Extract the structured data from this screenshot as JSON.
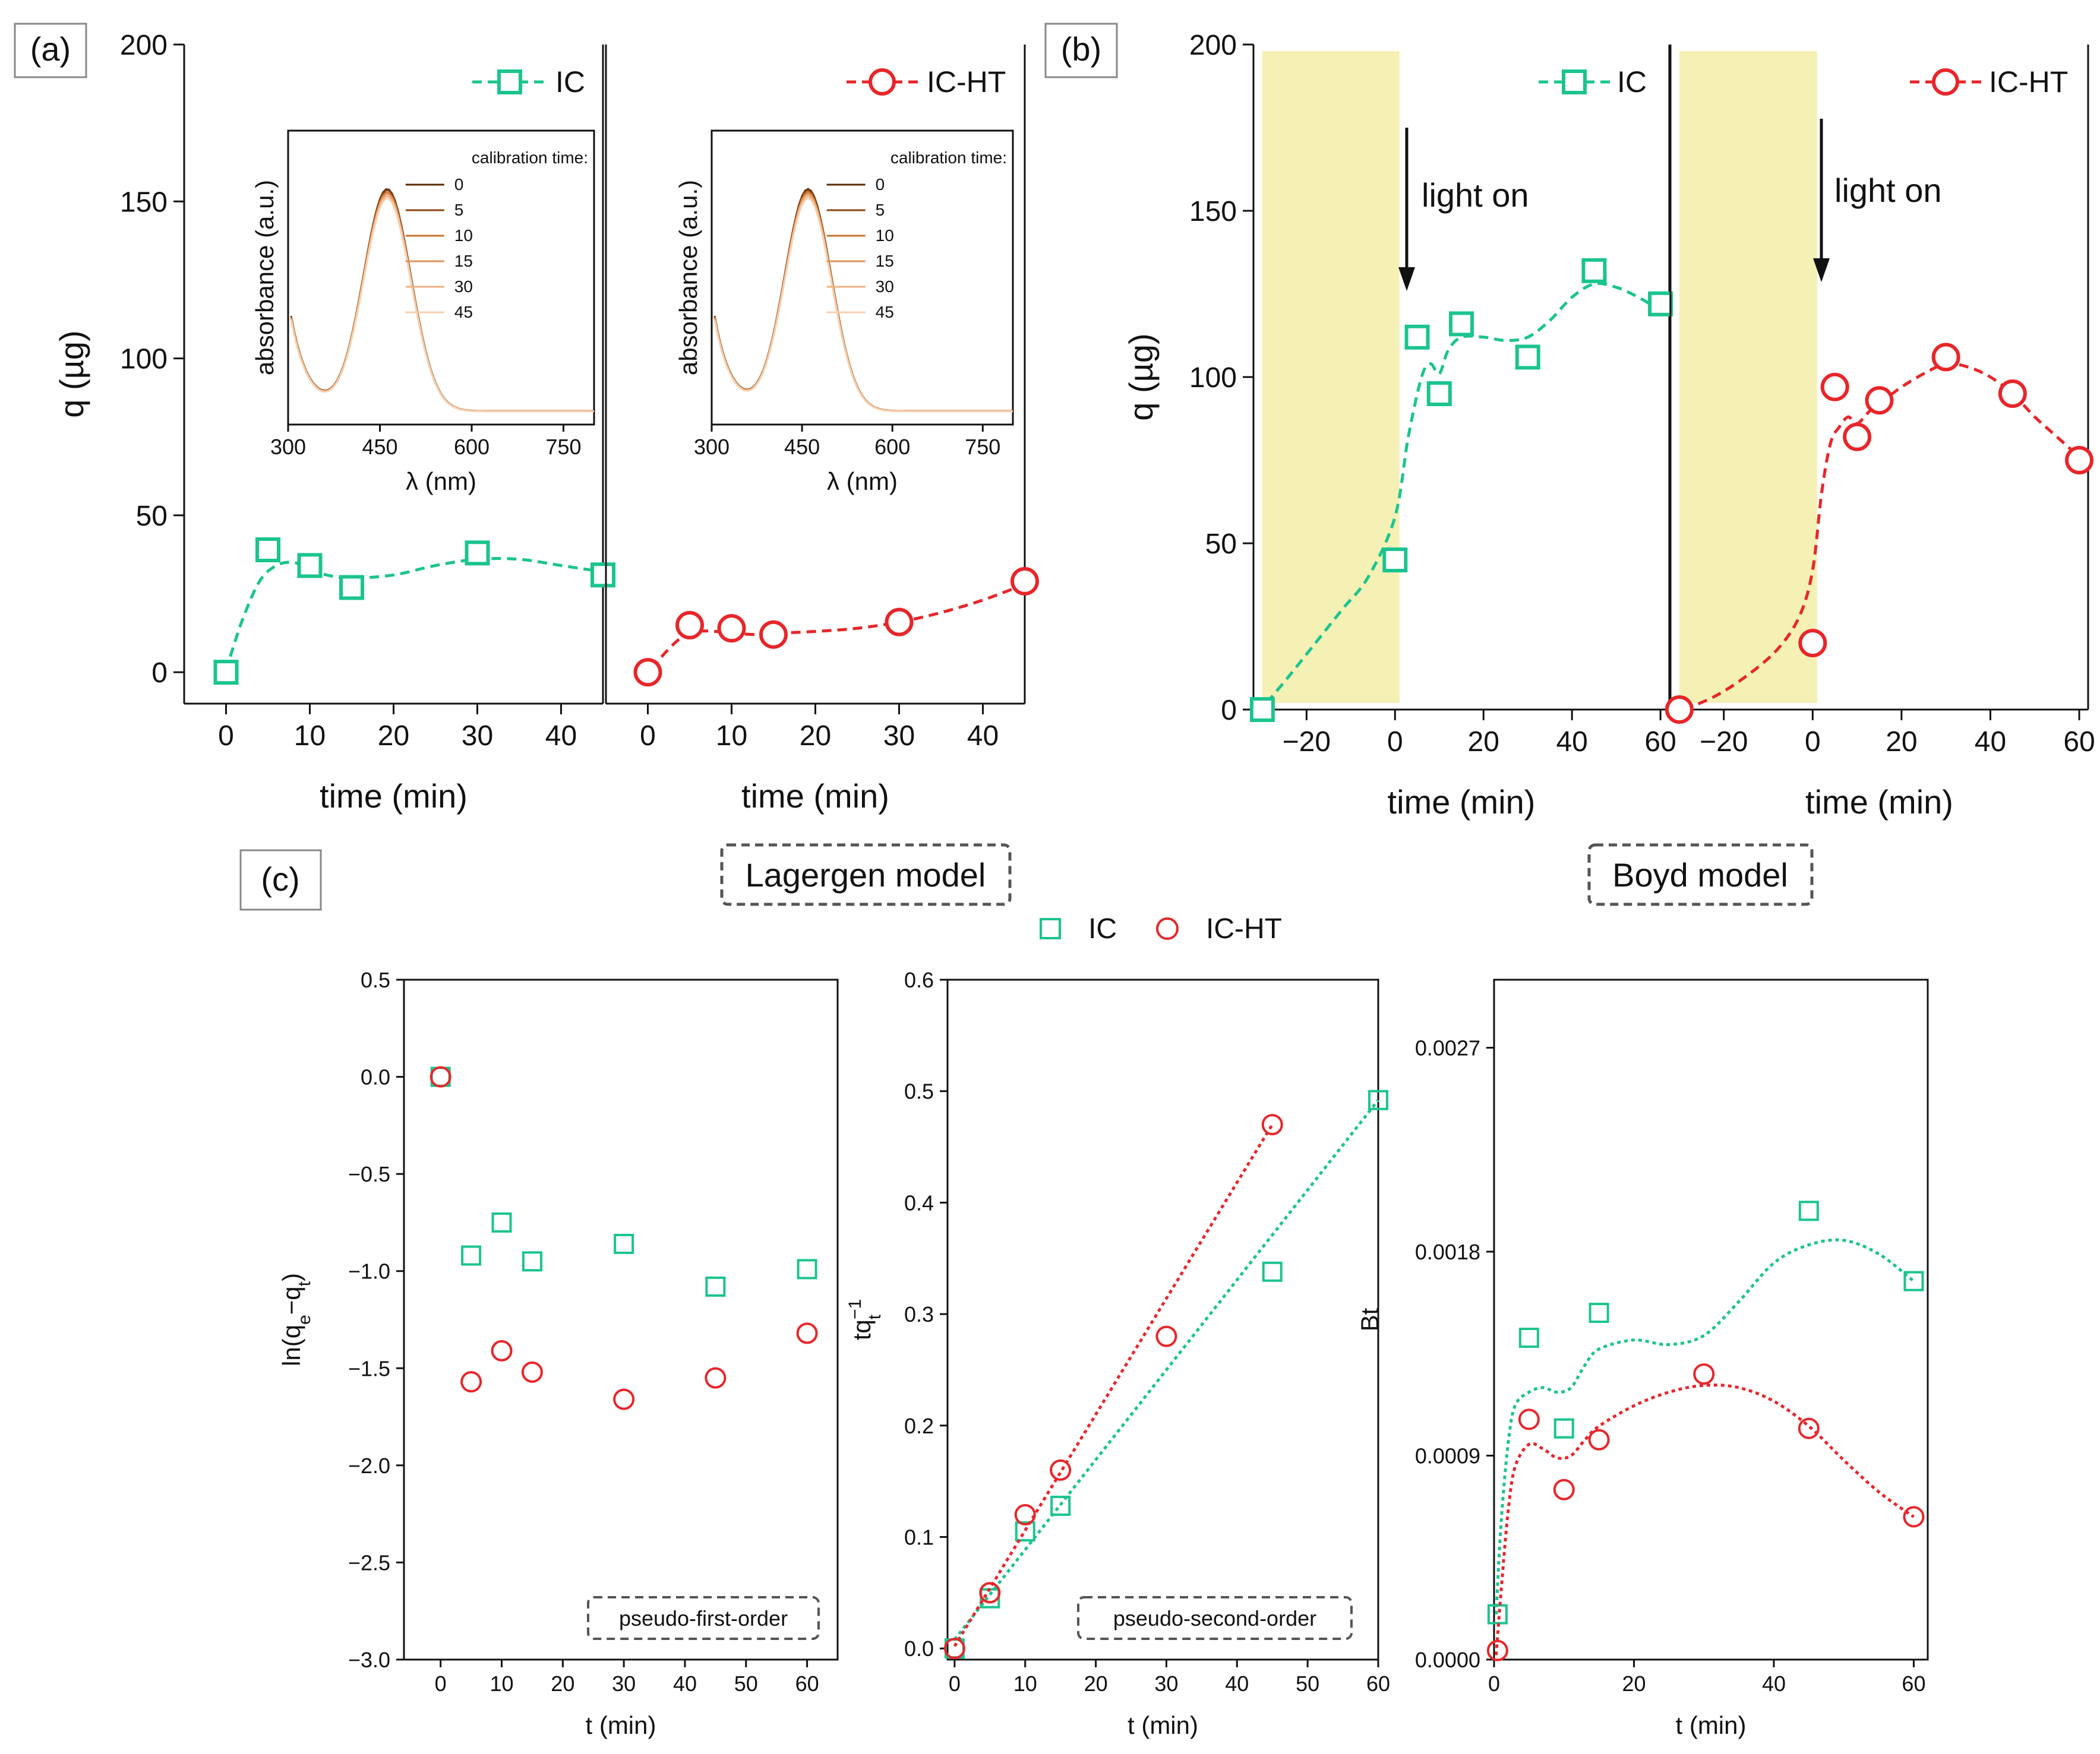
{
  "colors": {
    "ic": "#1bc48f",
    "ic_ht": "#e8262a",
    "shade": "#f5f0b4",
    "spectrum_dark": "#7a3e10",
    "spectrum_light": "#f0b07a"
  },
  "labels": {
    "panel_a": "(a)",
    "panel_b": "(b)",
    "panel_c": "(c)",
    "lagergen": "Lagergen model",
    "boyd": "Boyd model",
    "light_on": "light on",
    "pfo": "pseudo-first-order",
    "pso": "pseudo-second-order",
    "legend_ic": "IC",
    "legend_icht": "IC-HT",
    "inset_legend_title": "calibration time:"
  },
  "chart_data": [
    {
      "id": "a-ic",
      "type": "scatter",
      "xlabel": "time (min)",
      "ylabel": "q (µg)",
      "xlim": [
        -5,
        45
      ],
      "ylim": [
        -10,
        200
      ],
      "xticks": [
        0,
        10,
        20,
        30,
        40
      ],
      "yticks": [
        0,
        50,
        100,
        150,
        200
      ],
      "series": [
        {
          "name": "IC",
          "marker": "square",
          "x": [
            0,
            5,
            10,
            15,
            30,
            45
          ],
          "y": [
            0,
            39,
            34,
            27,
            38,
            31
          ],
          "fit_x": [
            0.5,
            2,
            4,
            6,
            8,
            10,
            12,
            15,
            20,
            25,
            30,
            35,
            40,
            45
          ],
          "fit_y": [
            5,
            17,
            29,
            34,
            35,
            33,
            31,
            30,
            31,
            34,
            36,
            36,
            34,
            32
          ]
        }
      ]
    },
    {
      "id": "a-icht",
      "type": "scatter",
      "xlabel": "time (min)",
      "ylabel": "",
      "xlim": [
        -5,
        45
      ],
      "ylim": [
        -10,
        200
      ],
      "xticks": [
        0,
        10,
        20,
        30,
        40
      ],
      "yticks": [],
      "series": [
        {
          "name": "IC-HT",
          "marker": "circle",
          "x": [
            0,
            5,
            10,
            15,
            30,
            45
          ],
          "y": [
            0,
            15,
            14,
            12,
            16,
            29
          ],
          "fit_x": [
            0.5,
            2,
            4,
            6,
            8,
            10,
            13,
            16,
            20,
            25,
            30,
            35,
            40,
            45
          ],
          "fit_y": [
            1,
            6,
            11,
            13,
            13,
            12.5,
            12,
            12.5,
            13,
            14,
            16,
            19,
            23,
            28
          ]
        }
      ]
    },
    {
      "id": "b-ic",
      "type": "scatter",
      "xlabel": "time (min)",
      "ylabel": "q (µg)",
      "xlim": [
        -32,
        62
      ],
      "ylim": [
        0,
        200
      ],
      "xticks": [
        -20,
        0,
        20,
        40,
        60
      ],
      "xticklabels": [
        "−20",
        "0",
        "20",
        "40",
        "60"
      ],
      "yticks": [
        0,
        50,
        100,
        150,
        200
      ],
      "shade_x": [
        -30,
        1
      ],
      "arrow_x": 1,
      "series": [
        {
          "name": "IC",
          "marker": "square",
          "x": [
            -30,
            0,
            5,
            10,
            15,
            30,
            45,
            60
          ],
          "y": [
            0,
            45,
            112,
            95,
            116,
            106,
            132,
            122
          ],
          "fit_x": [
            -29,
            -24,
            -18,
            -12,
            -6,
            0,
            3,
            6,
            8,
            10,
            12,
            15,
            20,
            25,
            30,
            35,
            40,
            45,
            50,
            55,
            60
          ],
          "fit_y": [
            2,
            10,
            20,
            30,
            40,
            58,
            82,
            100,
            104,
            101,
            108,
            112,
            112,
            111,
            112,
            117,
            124,
            128,
            127,
            124,
            120
          ]
        }
      ]
    },
    {
      "id": "b-icht",
      "type": "scatter",
      "xlabel": "time (min)",
      "ylabel": "",
      "xlim": [
        -32,
        62
      ],
      "ylim": [
        0,
        200
      ],
      "xticks": [
        -20,
        0,
        20,
        40,
        60
      ],
      "xticklabels": [
        "−20",
        "0",
        "20",
        "40",
        "60"
      ],
      "yticks": [],
      "shade_x": [
        -30,
        1
      ],
      "arrow_x": 1,
      "series": [
        {
          "name": "IC-HT",
          "marker": "circle",
          "x": [
            -30,
            0,
            5,
            10,
            15,
            30,
            45,
            60
          ],
          "y": [
            0,
            20,
            97,
            82,
            93,
            106,
            95,
            75
          ],
          "fit_x": [
            -29,
            -22,
            -15,
            -8,
            -3,
            0,
            2,
            4,
            6,
            8,
            10,
            13,
            16,
            20,
            25,
            30,
            35,
            40,
            45,
            50,
            55,
            60
          ],
          "fit_y": [
            0,
            4,
            10,
            18,
            28,
            42,
            65,
            80,
            85,
            88,
            86,
            90,
            93,
            97,
            101,
            104,
            103,
            100,
            95,
            88,
            82,
            76
          ]
        }
      ]
    },
    {
      "id": "c-pfo",
      "type": "scatter",
      "xlabel": "t (min)",
      "ylabel": "ln(qe−qt)",
      "xlim": [
        -6,
        65
      ],
      "ylim": [
        -3.0,
        0.5
      ],
      "xticks": [
        0,
        10,
        20,
        30,
        40,
        50,
        60
      ],
      "yticks": [
        0.5,
        0.0,
        -0.5,
        -1.0,
        -1.5,
        -2.0,
        -2.5,
        -3.0
      ],
      "yticklabels": [
        "0.5",
        "0.0",
        "−0.5",
        "−1.0",
        "−1.5",
        "−2.0",
        "−2.5",
        "−3.0"
      ],
      "series": [
        {
          "name": "IC",
          "marker": "square",
          "x": [
            0,
            5,
            10,
            15,
            30,
            45,
            60
          ],
          "y": [
            0.0,
            -0.92,
            -0.75,
            -0.95,
            -0.86,
            -1.08,
            -0.99
          ]
        },
        {
          "name": "IC-HT",
          "marker": "circle",
          "x": [
            0,
            5,
            10,
            15,
            30,
            45,
            60
          ],
          "y": [
            0.0,
            -1.57,
            -1.41,
            -1.52,
            -1.66,
            -1.55,
            -1.32
          ]
        }
      ]
    },
    {
      "id": "c-pso",
      "type": "scatter",
      "xlabel": "t (min)",
      "ylabel": "tqt−1",
      "xlim": [
        -1,
        60
      ],
      "ylim": [
        -0.01,
        0.6
      ],
      "xticks": [
        0,
        10,
        20,
        30,
        40,
        50,
        60
      ],
      "yticks": [
        0.0,
        0.1,
        0.2,
        0.3,
        0.4,
        0.5,
        0.6
      ],
      "yticklabels": [
        "0.0",
        "0.1",
        "0.2",
        "0.3",
        "0.4",
        "0.5",
        "0.6"
      ],
      "series": [
        {
          "name": "IC",
          "marker": "square",
          "x": [
            0,
            5,
            10,
            15,
            45,
            60
          ],
          "y": [
            0.0,
            0.045,
            0.105,
            0.128,
            0.338,
            0.492
          ],
          "fit_x": [
            0,
            60
          ],
          "fit_y": [
            0.008,
            0.492
          ]
        },
        {
          "name": "IC-HT",
          "marker": "circle",
          "x": [
            0,
            5,
            10,
            15,
            30,
            45
          ],
          "y": [
            0.0,
            0.05,
            0.12,
            0.16,
            0.28,
            0.47
          ],
          "fit_x": [
            0,
            45
          ],
          "fit_y": [
            0.002,
            0.47
          ]
        }
      ]
    },
    {
      "id": "c-boyd",
      "type": "scatter",
      "xlabel": "t (min)",
      "ylabel": "Bt",
      "xlim": [
        0,
        62
      ],
      "ylim": [
        0,
        0.003
      ],
      "xticks": [
        0,
        20,
        40,
        60
      ],
      "yticks": [
        0.0,
        0.0009,
        0.0018,
        0.0027
      ],
      "yticklabels": [
        "0.0000",
        "0.0009",
        "0.0018",
        "0.0027"
      ],
      "series": [
        {
          "name": "IC",
          "marker": "square",
          "x": [
            0.5,
            5,
            10,
            15,
            45,
            60
          ],
          "y": [
            0.0002,
            0.00142,
            0.00102,
            0.00153,
            0.00198,
            0.00167
          ],
          "fit_x": [
            0.3,
            1,
            2,
            3,
            5,
            7,
            9,
            11,
            13,
            15,
            20,
            25,
            30,
            35,
            40,
            45,
            50,
            55,
            60
          ],
          "fit_y": [
            0.0002,
            0.0006,
            0.00095,
            0.00112,
            0.00118,
            0.0012,
            0.00118,
            0.0012,
            0.0013,
            0.00137,
            0.00141,
            0.00139,
            0.00143,
            0.00158,
            0.00175,
            0.00183,
            0.00185,
            0.00179,
            0.00167
          ]
        },
        {
          "name": "IC-HT",
          "marker": "circle",
          "x": [
            0.5,
            5,
            10,
            15,
            30,
            45,
            60
          ],
          "y": [
            4e-05,
            0.00106,
            0.00075,
            0.00097,
            0.00126,
            0.00102,
            0.00063
          ],
          "fit_x": [
            0.3,
            1,
            2,
            3,
            5,
            7,
            9,
            11,
            13,
            15,
            20,
            25,
            30,
            35,
            40,
            45,
            50,
            55,
            60
          ],
          "fit_y": [
            2e-05,
            0.0003,
            0.00065,
            0.00085,
            0.00095,
            0.00093,
            0.00089,
            0.0009,
            0.00097,
            0.00103,
            0.00112,
            0.00118,
            0.00121,
            0.0012,
            0.00114,
            0.00103,
            0.00088,
            0.00074,
            0.00063
          ]
        }
      ]
    },
    {
      "id": "inset-ic",
      "type": "line",
      "xlabel": "λ (nm)",
      "ylabel": "absorbance (a.u.)",
      "xlim": [
        300,
        800
      ],
      "xticks": [
        300,
        450,
        600,
        750
      ],
      "legend_title": "calibration time:",
      "legend_entries": [
        "0",
        "5",
        "10",
        "15",
        "30",
        "45"
      ],
      "peak_nm": 462
    },
    {
      "id": "inset-icht",
      "type": "line",
      "xlabel": "λ (nm)",
      "ylabel": "absorbance (a.u.)",
      "xlim": [
        300,
        800
      ],
      "xticks": [
        300,
        450,
        600,
        750
      ],
      "legend_title": "calibration time:",
      "legend_entries": [
        "0",
        "5",
        "10",
        "15",
        "30",
        "45"
      ],
      "peak_nm": 460
    }
  ]
}
